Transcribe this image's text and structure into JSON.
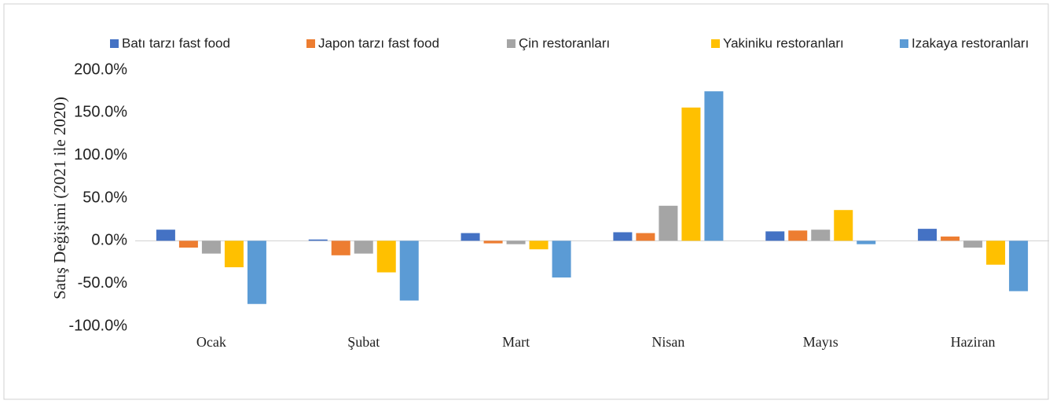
{
  "chart_data": {
    "type": "bar",
    "y_label": "Satış Değişimi (2021 ile 2020)",
    "categories": [
      "Ocak",
      "Şubat",
      "Mart",
      "Nisan",
      "Mayıs",
      "Haziran"
    ],
    "series": [
      {
        "name": "Batı tarzı fast food",
        "color": "#4472c4",
        "values": [
          13,
          1.5,
          9,
          10,
          11,
          14
        ]
      },
      {
        "name": "Japon tarzı fast food",
        "color": "#ed7d31",
        "values": [
          -8,
          -17,
          -3,
          9,
          12,
          5
        ]
      },
      {
        "name": "Çin restoranları",
        "color": "#a5a5a5",
        "values": [
          -15,
          -15,
          -4,
          41,
          13,
          -8
        ]
      },
      {
        "name": "Yakiniku restoranları",
        "color": "#ffc000",
        "values": [
          -31,
          -37,
          -10,
          156,
          36,
          -28
        ]
      },
      {
        "name": "Izakaya restoranları",
        "color": "#5b9bd5",
        "values": [
          -74,
          -70,
          -43,
          175,
          -4,
          -59
        ]
      }
    ],
    "ylim": [
      -100,
      200
    ],
    "yticks": [
      {
        "value": -100,
        "label": "-100.0%"
      },
      {
        "value": -50,
        "label": "-50.0%"
      },
      {
        "value": 0,
        "label": "0.0%"
      },
      {
        "value": 50,
        "label": "50.0%"
      },
      {
        "value": 100,
        "label": "100.0%"
      },
      {
        "value": 150,
        "label": "150.0%"
      },
      {
        "value": 200,
        "label": "200.0%"
      }
    ],
    "legend": "top"
  }
}
